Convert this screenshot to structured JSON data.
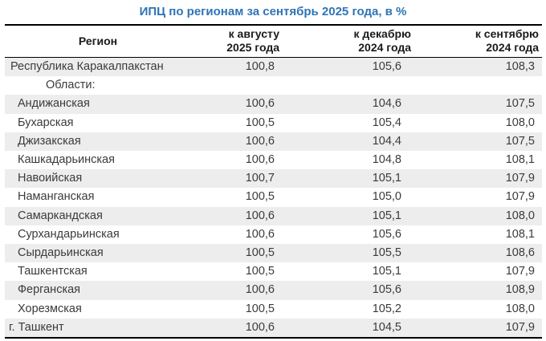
{
  "title": "ИПЦ по регионам за сентябрь 2025 года, в %",
  "colors": {
    "title_text": "#2e74b5",
    "alt_row_background": "#ededed",
    "rule": "#000000",
    "body_text": "#3b3b3b"
  },
  "table": {
    "header": {
      "region": "Регион",
      "cols": [
        {
          "line1": "к августу",
          "line2": "2025 года"
        },
        {
          "line1": "к декабрю",
          "line2": "2024 года"
        },
        {
          "line1": "к сентябрю",
          "line2": "2024 года"
        }
      ]
    },
    "rows": [
      {
        "region": "Республика Каракалпакстан",
        "indent": "republic",
        "values": [
          "100,8",
          "105,6",
          "108,3"
        ]
      },
      {
        "region": "Области:",
        "indent": "group",
        "values": []
      },
      {
        "region": "Андижанская",
        "indent": "oblast",
        "values": [
          "100,6",
          "104,6",
          "107,5"
        ]
      },
      {
        "region": "Бухарская",
        "indent": "oblast",
        "values": [
          "100,5",
          "105,4",
          "108,0"
        ]
      },
      {
        "region": "Джизакская",
        "indent": "oblast",
        "values": [
          "100,6",
          "104,4",
          "107,5"
        ]
      },
      {
        "region": "Кашкадарьинская",
        "indent": "oblast",
        "values": [
          "100,6",
          "104,8",
          "108,1"
        ]
      },
      {
        "region": "Навоийская",
        "indent": "oblast",
        "values": [
          "100,7",
          "105,1",
          "107,9"
        ]
      },
      {
        "region": "Наманганская",
        "indent": "oblast",
        "values": [
          "100,5",
          "105,0",
          "107,9"
        ]
      },
      {
        "region": "Самаркандская",
        "indent": "oblast",
        "values": [
          "100,6",
          "105,1",
          "108,0"
        ]
      },
      {
        "region": "Сурхандарьинская",
        "indent": "oblast",
        "values": [
          "100,6",
          "105,6",
          "108,1"
        ]
      },
      {
        "region": "Сырдарьинская",
        "indent": "oblast",
        "values": [
          "100,5",
          "105,5",
          "108,6"
        ]
      },
      {
        "region": "Ташкентская",
        "indent": "oblast",
        "values": [
          "100,5",
          "105,1",
          "107,9"
        ]
      },
      {
        "region": "Ферганская",
        "indent": "oblast",
        "values": [
          "100,6",
          "105,6",
          "108,9"
        ]
      },
      {
        "region": "Хорезмская",
        "indent": "oblast",
        "values": [
          "100,5",
          "105,2",
          "108,0"
        ]
      },
      {
        "region": "г. Ташкент",
        "indent": "city",
        "values": [
          "100,6",
          "104,5",
          "107,9"
        ]
      }
    ]
  },
  "chart_data": {
    "type": "table",
    "title": "ИПЦ по регионам за сентябрь 2025 года, в %",
    "columns": [
      "Регион",
      "к августу 2025 года",
      "к декабрю 2024 года",
      "к сентябрю 2024 года"
    ],
    "rows": [
      [
        "Республика Каракалпакстан",
        100.8,
        105.6,
        108.3
      ],
      [
        "Андижанская",
        100.6,
        104.6,
        107.5
      ],
      [
        "Бухарская",
        100.5,
        105.4,
        108.0
      ],
      [
        "Джизакская",
        100.6,
        104.4,
        107.5
      ],
      [
        "Кашкадарьинская",
        100.6,
        104.8,
        108.1
      ],
      [
        "Навоийская",
        100.7,
        105.1,
        107.9
      ],
      [
        "Наманганская",
        100.5,
        105.0,
        107.9
      ],
      [
        "Самаркандская",
        100.6,
        105.1,
        108.0
      ],
      [
        "Сурхандарьинская",
        100.6,
        105.6,
        108.1
      ],
      [
        "Сырдарьинская",
        100.5,
        105.5,
        108.6
      ],
      [
        "Ташкентская",
        100.5,
        105.1,
        107.9
      ],
      [
        "Ферганская",
        100.6,
        105.6,
        108.9
      ],
      [
        "Хорезмская",
        100.5,
        105.2,
        108.0
      ],
      [
        "г. Ташкент",
        100.6,
        104.5,
        107.9
      ]
    ]
  }
}
